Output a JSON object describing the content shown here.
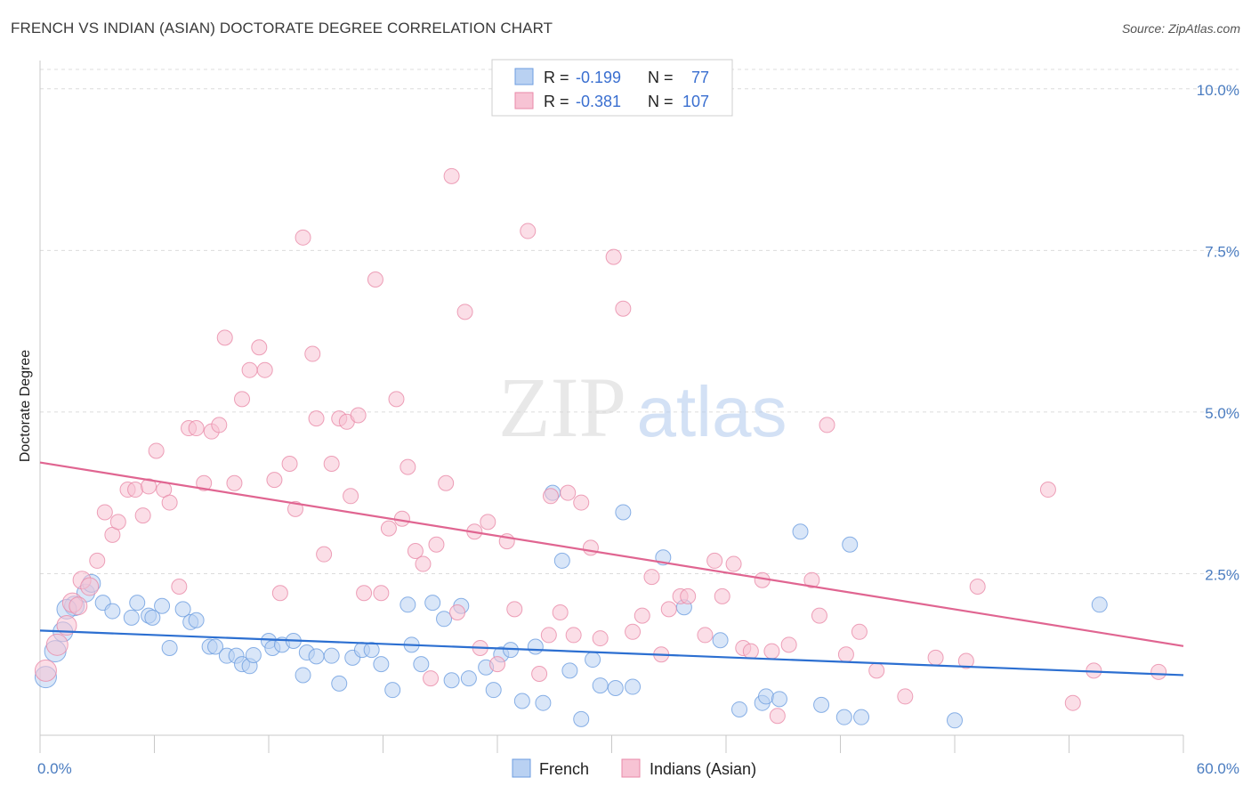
{
  "title": "FRENCH VS INDIAN (ASIAN) DOCTORATE DEGREE CORRELATION CHART",
  "source": "Source: ZipAtlas.com",
  "watermark": {
    "zip": "ZIP",
    "atlas": "atlas"
  },
  "chart_data": {
    "type": "scatter",
    "ylabel": "Doctorate Degree",
    "xlim": [
      0,
      60
    ],
    "ylim": [
      0,
      10.3
    ],
    "x_tick_labels": [
      "0.0%",
      "60.0%"
    ],
    "y_ticks": [
      2.5,
      5.0,
      7.5,
      10.0
    ],
    "y_tick_labels": [
      "2.5%",
      "5.0%",
      "7.5%",
      "10.0%"
    ],
    "grid": "horizontal dashed",
    "legend_position": "top-center",
    "legend": [
      {
        "label": "R = ",
        "r": "-0.199",
        "n_label": "N = ",
        "n": " 77"
      },
      {
        "label": "R = ",
        "r": "-0.381",
        "n_label": "N = ",
        "n": "107"
      }
    ],
    "series": [
      {
        "name": "French",
        "color": "#6d9de0",
        "fill": "#b9d1f2",
        "trend": {
          "x": [
            0,
            60
          ],
          "y": [
            1.62,
            0.93
          ],
          "color": "#2c6fd1"
        },
        "points": [
          [
            0.3,
            0.9
          ],
          [
            0.8,
            1.3
          ],
          [
            1.2,
            1.6
          ],
          [
            1.8,
            2.0
          ],
          [
            2.4,
            2.2
          ],
          [
            2.7,
            2.35
          ],
          [
            3.3,
            2.05
          ],
          [
            3.8,
            1.92
          ],
          [
            4.8,
            1.82
          ],
          [
            5.1,
            2.05
          ],
          [
            5.7,
            1.85
          ],
          [
            5.9,
            1.82
          ],
          [
            6.4,
            2.0
          ],
          [
            6.8,
            1.35
          ],
          [
            7.5,
            1.95
          ],
          [
            7.9,
            1.75
          ],
          [
            8.2,
            1.78
          ],
          [
            8.9,
            1.37
          ],
          [
            9.2,
            1.37
          ],
          [
            9.8,
            1.23
          ],
          [
            10.3,
            1.23
          ],
          [
            10.6,
            1.1
          ],
          [
            11.0,
            1.07
          ],
          [
            11.2,
            1.24
          ],
          [
            12.0,
            1.46
          ],
          [
            12.2,
            1.35
          ],
          [
            12.7,
            1.4
          ],
          [
            13.3,
            1.46
          ],
          [
            13.8,
            0.93
          ],
          [
            14.0,
            1.28
          ],
          [
            14.5,
            1.22
          ],
          [
            15.3,
            1.23
          ],
          [
            15.7,
            0.8
          ],
          [
            16.4,
            1.2
          ],
          [
            16.9,
            1.32
          ],
          [
            17.4,
            1.32
          ],
          [
            17.9,
            1.1
          ],
          [
            18.5,
            0.7
          ],
          [
            19.3,
            2.02
          ],
          [
            19.5,
            1.4
          ],
          [
            20.0,
            1.1
          ],
          [
            20.6,
            2.05
          ],
          [
            21.2,
            1.8
          ],
          [
            21.6,
            0.85
          ],
          [
            22.1,
            2.0
          ],
          [
            22.5,
            0.88
          ],
          [
            23.4,
            1.05
          ],
          [
            23.8,
            0.7
          ],
          [
            24.2,
            1.25
          ],
          [
            24.7,
            1.32
          ],
          [
            25.3,
            0.53
          ],
          [
            26.0,
            1.37
          ],
          [
            26.4,
            0.5
          ],
          [
            26.9,
            3.75
          ],
          [
            27.4,
            2.7
          ],
          [
            27.8,
            1.0
          ],
          [
            28.4,
            0.25
          ],
          [
            29.0,
            1.17
          ],
          [
            29.4,
            0.77
          ],
          [
            30.2,
            0.73
          ],
          [
            30.6,
            3.45
          ],
          [
            31.1,
            0.75
          ],
          [
            32.7,
            2.75
          ],
          [
            33.8,
            1.98
          ],
          [
            35.7,
            1.47
          ],
          [
            36.7,
            0.4
          ],
          [
            37.9,
            0.5
          ],
          [
            38.1,
            0.6
          ],
          [
            38.8,
            0.56
          ],
          [
            39.9,
            3.15
          ],
          [
            41.0,
            0.47
          ],
          [
            42.2,
            0.28
          ],
          [
            42.5,
            2.95
          ],
          [
            43.1,
            0.28
          ],
          [
            48.0,
            0.23
          ],
          [
            55.6,
            2.02
          ],
          [
            1.4,
            1.95
          ]
        ]
      },
      {
        "name": "Indians (Asian)",
        "color": "#e88aa8",
        "fill": "#f7c3d4",
        "trend": {
          "x": [
            0,
            60
          ],
          "y": [
            4.22,
            1.38
          ],
          "color": "#e06591"
        },
        "points": [
          [
            0.3,
            1.0
          ],
          [
            0.9,
            1.4
          ],
          [
            1.4,
            1.7
          ],
          [
            1.7,
            2.05
          ],
          [
            2.2,
            2.4
          ],
          [
            2.6,
            2.3
          ],
          [
            3.0,
            2.7
          ],
          [
            3.4,
            3.45
          ],
          [
            3.8,
            3.1
          ],
          [
            4.1,
            3.3
          ],
          [
            4.6,
            3.8
          ],
          [
            5.0,
            3.8
          ],
          [
            5.4,
            3.4
          ],
          [
            5.7,
            3.85
          ],
          [
            6.1,
            4.4
          ],
          [
            6.5,
            3.8
          ],
          [
            6.8,
            3.6
          ],
          [
            7.3,
            2.3
          ],
          [
            7.8,
            4.75
          ],
          [
            8.2,
            4.75
          ],
          [
            8.6,
            3.9
          ],
          [
            9.0,
            4.7
          ],
          [
            9.4,
            4.8
          ],
          [
            9.7,
            6.15
          ],
          [
            10.2,
            3.9
          ],
          [
            10.6,
            5.2
          ],
          [
            11.0,
            5.65
          ],
          [
            11.5,
            6.0
          ],
          [
            11.8,
            5.65
          ],
          [
            12.3,
            3.95
          ],
          [
            12.6,
            2.2
          ],
          [
            13.1,
            4.2
          ],
          [
            13.4,
            3.5
          ],
          [
            13.8,
            7.7
          ],
          [
            14.3,
            5.9
          ],
          [
            14.5,
            4.9
          ],
          [
            14.9,
            2.8
          ],
          [
            15.3,
            4.2
          ],
          [
            15.7,
            4.9
          ],
          [
            16.1,
            4.85
          ],
          [
            16.3,
            3.7
          ],
          [
            16.7,
            4.95
          ],
          [
            17.0,
            2.2
          ],
          [
            17.6,
            7.05
          ],
          [
            17.9,
            2.2
          ],
          [
            18.3,
            3.2
          ],
          [
            18.7,
            5.2
          ],
          [
            19.0,
            3.35
          ],
          [
            19.3,
            4.15
          ],
          [
            19.7,
            2.85
          ],
          [
            20.1,
            2.65
          ],
          [
            20.5,
            0.88
          ],
          [
            20.8,
            2.95
          ],
          [
            21.3,
            3.9
          ],
          [
            21.6,
            8.65
          ],
          [
            21.9,
            1.9
          ],
          [
            22.3,
            6.55
          ],
          [
            22.8,
            3.15
          ],
          [
            23.1,
            1.35
          ],
          [
            23.5,
            3.3
          ],
          [
            24.0,
            1.1
          ],
          [
            24.5,
            3.0
          ],
          [
            24.9,
            1.95
          ],
          [
            25.6,
            7.8
          ],
          [
            26.2,
            0.95
          ],
          [
            26.7,
            1.55
          ],
          [
            27.3,
            1.9
          ],
          [
            27.7,
            3.75
          ],
          [
            28.0,
            1.55
          ],
          [
            28.4,
            3.6
          ],
          [
            28.9,
            2.9
          ],
          [
            29.4,
            1.5
          ],
          [
            30.1,
            7.4
          ],
          [
            30.6,
            6.6
          ],
          [
            31.1,
            1.6
          ],
          [
            31.6,
            1.85
          ],
          [
            32.1,
            2.45
          ],
          [
            32.6,
            1.25
          ],
          [
            33.0,
            1.95
          ],
          [
            33.6,
            2.15
          ],
          [
            34.0,
            2.15
          ],
          [
            34.9,
            1.55
          ],
          [
            35.4,
            2.7
          ],
          [
            35.8,
            2.15
          ],
          [
            36.4,
            2.65
          ],
          [
            36.9,
            1.35
          ],
          [
            37.3,
            1.3
          ],
          [
            37.9,
            2.4
          ],
          [
            38.4,
            1.3
          ],
          [
            38.7,
            0.3
          ],
          [
            39.3,
            1.4
          ],
          [
            40.5,
            2.4
          ],
          [
            40.9,
            1.85
          ],
          [
            41.3,
            4.8
          ],
          [
            42.3,
            1.25
          ],
          [
            43.0,
            1.6
          ],
          [
            43.9,
            1.0
          ],
          [
            45.4,
            0.6
          ],
          [
            47.0,
            1.2
          ],
          [
            48.6,
            1.15
          ],
          [
            49.2,
            2.3
          ],
          [
            52.9,
            3.8
          ],
          [
            54.2,
            0.5
          ],
          [
            55.3,
            1.0
          ],
          [
            58.7,
            0.98
          ],
          [
            2.0,
            2.0
          ],
          [
            26.8,
            3.7
          ]
        ]
      }
    ]
  }
}
